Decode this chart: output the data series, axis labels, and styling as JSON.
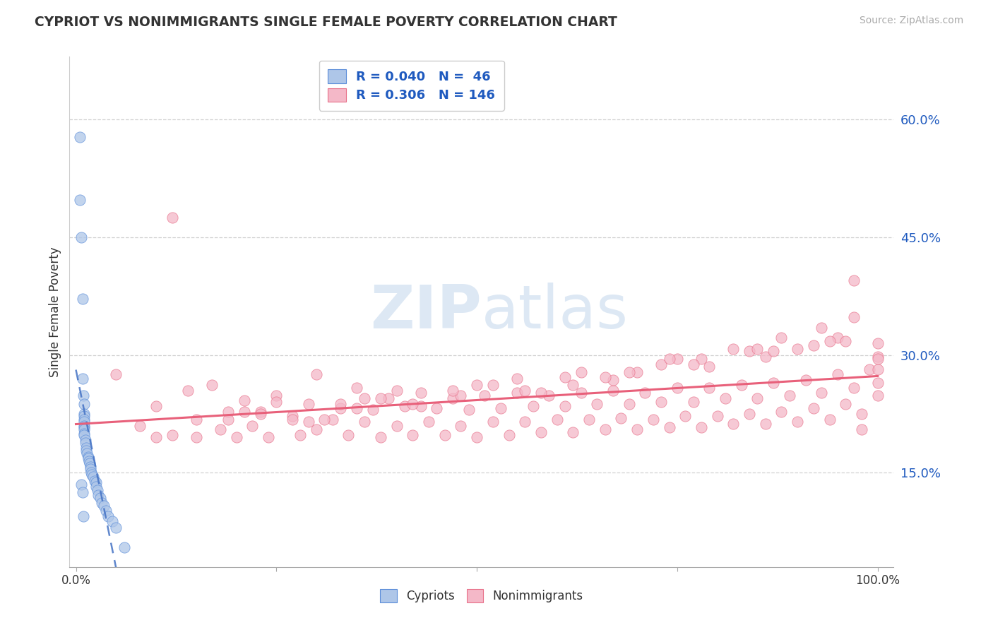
{
  "title": "CYPRIOT VS NONIMMIGRANTS SINGLE FEMALE POVERTY CORRELATION CHART",
  "source": "Source: ZipAtlas.com",
  "ylabel": "Single Female Poverty",
  "y_ticks": [
    0.15,
    0.3,
    0.45,
    0.6
  ],
  "y_tick_labels": [
    "15.0%",
    "30.0%",
    "45.0%",
    "60.0%"
  ],
  "x_tick_labels": [
    "0.0%",
    "100.0%"
  ],
  "cypriot_R": 0.04,
  "cypriot_N": 46,
  "nonimm_R": 0.306,
  "nonimm_N": 146,
  "cypriot_color": "#aec6e8",
  "nonimm_color": "#f4b8c8",
  "cypriot_edge_color": "#5b8dd9",
  "nonimm_edge_color": "#e8718a",
  "cypriot_line_color": "#4472c4",
  "nonimm_line_color": "#e8607a",
  "legend_text_color": "#1f5abf",
  "watermark_color": "#dde8f4",
  "background_color": "#ffffff",
  "grid_color": "#cccccc",
  "cypriot_x": [
    0.005,
    0.005,
    0.007,
    0.008,
    0.008,
    0.009,
    0.01,
    0.01,
    0.01,
    0.01,
    0.01,
    0.01,
    0.01,
    0.01,
    0.01,
    0.01,
    0.012,
    0.012,
    0.013,
    0.013,
    0.014,
    0.015,
    0.015,
    0.016,
    0.017,
    0.018,
    0.018,
    0.019,
    0.02,
    0.022,
    0.023,
    0.025,
    0.025,
    0.027,
    0.028,
    0.03,
    0.032,
    0.035,
    0.037,
    0.04,
    0.045,
    0.05,
    0.06,
    0.007,
    0.008,
    0.009
  ],
  "cypriot_y": [
    0.578,
    0.498,
    0.45,
    0.372,
    0.27,
    0.248,
    0.238,
    0.225,
    0.222,
    0.218,
    0.215,
    0.21,
    0.208,
    0.205,
    0.2,
    0.198,
    0.192,
    0.188,
    0.182,
    0.178,
    0.175,
    0.17,
    0.168,
    0.165,
    0.162,
    0.158,
    0.155,
    0.15,
    0.148,
    0.145,
    0.14,
    0.138,
    0.132,
    0.128,
    0.122,
    0.118,
    0.112,
    0.108,
    0.102,
    0.095,
    0.088,
    0.08,
    0.055,
    0.135,
    0.125,
    0.095
  ],
  "nonimm_x": [
    0.05,
    0.08,
    0.1,
    0.12,
    0.14,
    0.15,
    0.17,
    0.18,
    0.19,
    0.2,
    0.21,
    0.22,
    0.23,
    0.24,
    0.25,
    0.27,
    0.28,
    0.29,
    0.3,
    0.3,
    0.32,
    0.33,
    0.34,
    0.35,
    0.36,
    0.37,
    0.38,
    0.39,
    0.4,
    0.41,
    0.42,
    0.43,
    0.44,
    0.45,
    0.46,
    0.47,
    0.48,
    0.49,
    0.5,
    0.51,
    0.52,
    0.53,
    0.54,
    0.55,
    0.56,
    0.57,
    0.58,
    0.59,
    0.6,
    0.61,
    0.62,
    0.63,
    0.64,
    0.65,
    0.66,
    0.67,
    0.68,
    0.69,
    0.7,
    0.71,
    0.72,
    0.73,
    0.74,
    0.75,
    0.76,
    0.77,
    0.78,
    0.79,
    0.8,
    0.81,
    0.82,
    0.83,
    0.84,
    0.85,
    0.86,
    0.87,
    0.88,
    0.89,
    0.9,
    0.91,
    0.92,
    0.93,
    0.94,
    0.95,
    0.96,
    0.97,
    0.98,
    0.99,
    1.0,
    1.0,
    1.0,
    1.0,
    1.0,
    1.0,
    0.25,
    0.4,
    0.55,
    0.29,
    0.35,
    0.48,
    0.62,
    0.7,
    0.75,
    0.82,
    0.88,
    0.93,
    0.97,
    0.15,
    0.31,
    0.43,
    0.58,
    0.67,
    0.79,
    0.86,
    0.92,
    0.98,
    0.21,
    0.38,
    0.52,
    0.69,
    0.78,
    0.9,
    0.95,
    0.19,
    0.33,
    0.47,
    0.61,
    0.73,
    0.84,
    0.94,
    0.1,
    0.27,
    0.42,
    0.56,
    0.66,
    0.77,
    0.87,
    0.96,
    0.23,
    0.36,
    0.5,
    0.63,
    0.74,
    0.85
  ],
  "nonimm_y": [
    0.275,
    0.21,
    0.235,
    0.198,
    0.255,
    0.218,
    0.262,
    0.205,
    0.228,
    0.195,
    0.242,
    0.21,
    0.228,
    0.195,
    0.248,
    0.222,
    0.198,
    0.238,
    0.205,
    0.275,
    0.218,
    0.232,
    0.198,
    0.258,
    0.215,
    0.23,
    0.195,
    0.245,
    0.21,
    0.235,
    0.198,
    0.252,
    0.215,
    0.232,
    0.198,
    0.245,
    0.21,
    0.23,
    0.195,
    0.248,
    0.215,
    0.232,
    0.198,
    0.252,
    0.215,
    0.235,
    0.202,
    0.248,
    0.218,
    0.235,
    0.202,
    0.252,
    0.218,
    0.238,
    0.205,
    0.255,
    0.22,
    0.238,
    0.205,
    0.252,
    0.218,
    0.24,
    0.208,
    0.258,
    0.222,
    0.24,
    0.208,
    0.258,
    0.222,
    0.245,
    0.212,
    0.262,
    0.225,
    0.245,
    0.212,
    0.265,
    0.228,
    0.248,
    0.215,
    0.268,
    0.232,
    0.252,
    0.218,
    0.275,
    0.238,
    0.258,
    0.225,
    0.282,
    0.248,
    0.265,
    0.282,
    0.298,
    0.315,
    0.295,
    0.24,
    0.255,
    0.27,
    0.215,
    0.232,
    0.248,
    0.262,
    0.278,
    0.295,
    0.308,
    0.322,
    0.335,
    0.348,
    0.195,
    0.218,
    0.235,
    0.252,
    0.268,
    0.285,
    0.298,
    0.312,
    0.205,
    0.228,
    0.245,
    0.262,
    0.278,
    0.295,
    0.308,
    0.322,
    0.218,
    0.238,
    0.255,
    0.272,
    0.288,
    0.305,
    0.318,
    0.195,
    0.218,
    0.238,
    0.255,
    0.272,
    0.288,
    0.305,
    0.318,
    0.225,
    0.245,
    0.262,
    0.278,
    0.295,
    0.308
  ]
}
